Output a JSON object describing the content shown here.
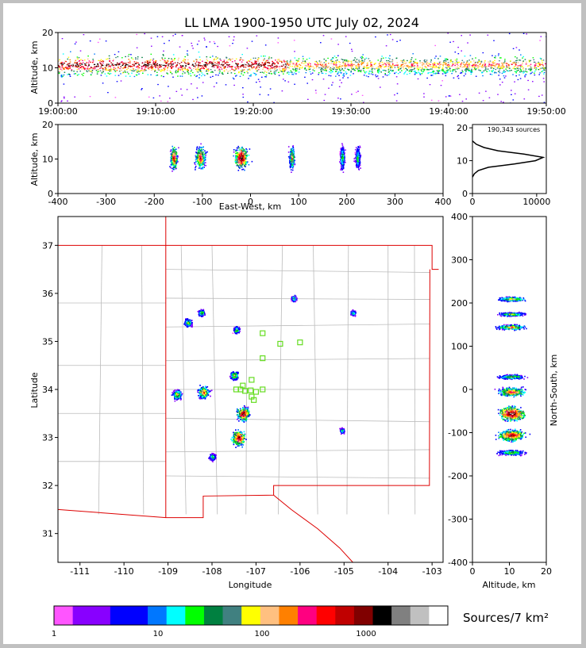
{
  "title": "LL LMA 1900-1950 UTC July 02, 2024",
  "chart_data": [
    {
      "name": "altitude-time",
      "type": "heatmap",
      "xlabel": "",
      "ylabel": "Altitude, km",
      "x_ticks": [
        "19:00:00",
        "19:10:00",
        "19:20:00",
        "19:30:00",
        "19:40:00",
        "19:50:00"
      ],
      "xlim": [
        "19:00:00",
        "19:50:00"
      ],
      "y_ticks": [
        0,
        10,
        20
      ],
      "ylim": [
        0,
        20
      ],
      "grid": false
    },
    {
      "name": "east-west-altitude",
      "type": "heatmap",
      "xlabel": "East-West, km",
      "ylabel": "Altitude, km",
      "x_ticks": [
        -400,
        -300,
        -200,
        -100,
        0,
        100,
        200,
        300,
        400
      ],
      "xlim": [
        -400,
        400
      ],
      "y_ticks": [
        0,
        10,
        20
      ],
      "ylim": [
        0,
        20
      ],
      "clusters_x_km": [
        -160,
        -105,
        -20,
        85,
        190,
        222
      ],
      "grid": false
    },
    {
      "name": "altitude-histogram",
      "type": "line",
      "annotation": "190,343 sources",
      "x_ticks": [
        0,
        10000
      ],
      "xlim": [
        0,
        11500
      ],
      "y_ticks": [
        0,
        10,
        20
      ],
      "ylim": [
        0,
        21
      ],
      "profile": {
        "altitude": [
          5,
          6,
          7,
          8,
          9,
          10,
          11,
          12,
          13,
          14,
          15,
          16
        ],
        "sources": [
          0,
          300,
          900,
          2500,
          6500,
          9800,
          11000,
          8000,
          4000,
          1800,
          600,
          0
        ]
      }
    },
    {
      "name": "plan-view",
      "type": "heatmap",
      "xlabel": "Longitude",
      "ylabel": "Latitude",
      "x_ticks": [
        -111,
        -110,
        -109,
        -108,
        -107,
        -106,
        -105,
        -104,
        -103
      ],
      "xlim": [
        -111.5,
        -102.75
      ],
      "y_ticks": [
        31,
        32,
        33,
        34,
        35,
        36,
        37
      ],
      "ylim": [
        30.4,
        37.6
      ],
      "stations": [
        [
          -106.85,
          35.17
        ],
        [
          -106.45,
          34.95
        ],
        [
          -106.0,
          34.98
        ],
        [
          -106.85,
          34.65
        ],
        [
          -107.1,
          34.2
        ],
        [
          -107.3,
          34.08
        ],
        [
          -107.45,
          34.0
        ],
        [
          -107.35,
          34.0
        ],
        [
          -107.25,
          33.97
        ],
        [
          -107.12,
          33.98
        ],
        [
          -107.0,
          33.95
        ],
        [
          -106.85,
          34.0
        ],
        [
          -107.1,
          33.85
        ],
        [
          -107.05,
          33.78
        ]
      ],
      "storm_cells": [
        [
          -107.4,
          33.0
        ],
        [
          -107.3,
          33.5
        ],
        [
          -107.5,
          34.3
        ],
        [
          -108.2,
          33.95
        ],
        [
          -108.8,
          33.9
        ],
        [
          -108.25,
          35.6
        ],
        [
          -108.55,
          35.4
        ],
        [
          -107.45,
          35.25
        ],
        [
          -106.15,
          35.9
        ],
        [
          -104.8,
          35.6
        ],
        [
          -105.05,
          33.15
        ],
        [
          -108.0,
          32.6
        ]
      ],
      "grid": false
    },
    {
      "name": "altitude-north-south",
      "type": "heatmap",
      "xlabel": "Altitude, km",
      "ylabel": "North-South, km",
      "x_ticks": [
        0,
        10,
        20
      ],
      "xlim": [
        0,
        20
      ],
      "y_ticks": [
        -400,
        -300,
        -200,
        -100,
        0,
        100,
        200,
        300,
        400
      ],
      "ylim": [
        -400,
        400
      ],
      "clusters_y_km": [
        210,
        175,
        145,
        30,
        -5,
        -55,
        -105,
        -145
      ],
      "grid": false
    },
    {
      "name": "colorbar",
      "type": "bar",
      "label": "Sources/7 km²",
      "tick_labels": [
        "1",
        "10",
        "100",
        "1000"
      ],
      "scale": "log",
      "colors": [
        "#ff55ff",
        "#8800ff",
        "#8800ff",
        "#0000ff",
        "#0000ff",
        "#0077ff",
        "#00ffff",
        "#00ff00",
        "#008040",
        "#408080",
        "#ffff00",
        "#ffc080",
        "#ff8000",
        "#ff0080",
        "#ff0000",
        "#c00000",
        "#800000",
        "#000000",
        "#808080",
        "#c0c0c0",
        "#ffffff"
      ]
    }
  ]
}
